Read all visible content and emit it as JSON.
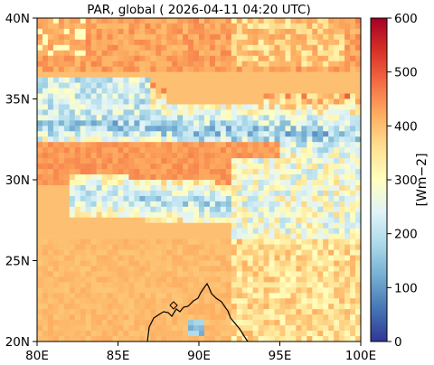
{
  "chart_data": {
    "type": "heatmap",
    "title": "PAR, global ( 2026-04-11 04:20 UTC)",
    "xlabel": "",
    "ylabel": "",
    "x_range": [
      80,
      100
    ],
    "y_range": [
      20,
      40
    ],
    "x_ticks": [
      {
        "value": 80,
        "label": "80E"
      },
      {
        "value": 85,
        "label": "85E"
      },
      {
        "value": 90,
        "label": "90E"
      },
      {
        "value": 95,
        "label": "95E"
      },
      {
        "value": 100,
        "label": "100E"
      }
    ],
    "y_ticks": [
      {
        "value": 20,
        "label": "20N"
      },
      {
        "value": 25,
        "label": "25N"
      },
      {
        "value": 30,
        "label": "30N"
      },
      {
        "value": 35,
        "label": "35N"
      },
      {
        "value": 40,
        "label": "40N"
      }
    ],
    "colorbar": {
      "label": "[Wm−2]",
      "min": 0,
      "max": 600,
      "ticks": [
        0,
        100,
        200,
        300,
        400,
        500,
        600
      ],
      "colormap": "RdYlBu_r",
      "colors": [
        "#313695",
        "#4575b4",
        "#74add1",
        "#abd9e9",
        "#e0f3f8",
        "#ffffbf",
        "#fee090",
        "#fdae61",
        "#f46d43",
        "#d73027",
        "#a50026"
      ]
    },
    "grid": false,
    "value_regions": [
      {
        "region": "Tibetan plateau cloud band (approx. 31-36N, 80-100E)",
        "approx_value": 180
      },
      {
        "region": "Tarim basin / north (approx. 37-40N)",
        "approx_value": 420
      },
      {
        "region": "Central plateau (approx. 29-33N)",
        "approx_value": 430
      },
      {
        "region": "Himalaya cloud strip (approx. 27-30N)",
        "approx_value": 260
      },
      {
        "region": "Indo-Gangetic plain (approx. 20-27N)",
        "approx_value": 410
      }
    ],
    "coastline": "Bangladesh / Bay of Bengal coastline near 88-93E, 20-24N"
  }
}
